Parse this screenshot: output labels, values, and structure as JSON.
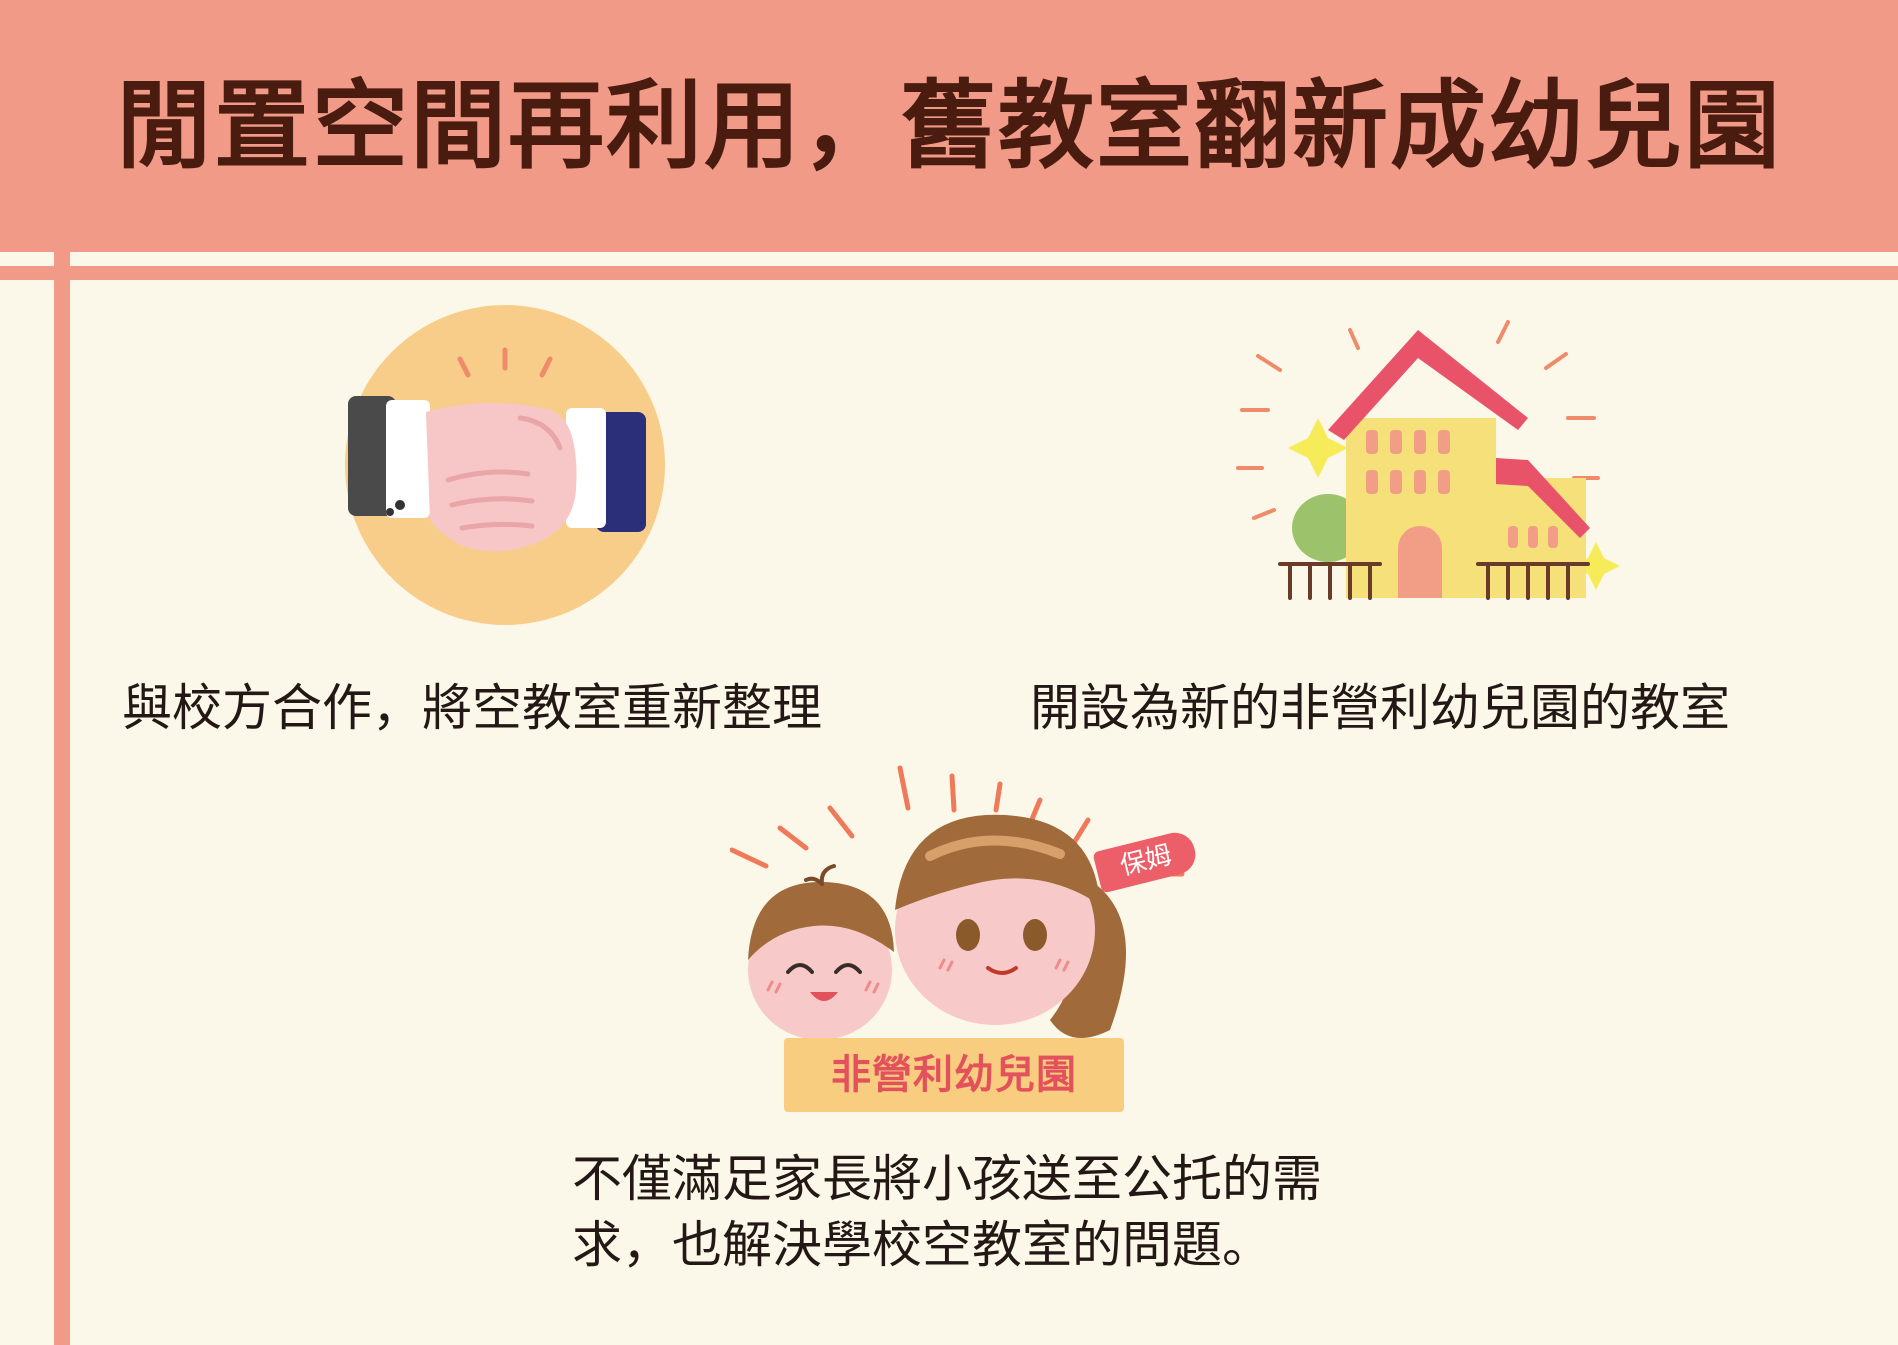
{
  "header": {
    "title": "閒置空間再利用，舊教室翻新成幼兒園"
  },
  "colors": {
    "header_bg": "#f19a88",
    "page_bg": "#fcf8e9",
    "title": "#4a1c10",
    "accent_red": "#e2515c"
  },
  "items": [
    {
      "icon": "handshake-icon",
      "caption": "與校方合作，將空教室重新整理"
    },
    {
      "icon": "school-building-icon",
      "caption": "開設為新的非營利幼兒園的教室"
    },
    {
      "icon": "nanny-and-child-icon",
      "caption": "不僅滿足家長將小孩送至公托的需求，也解決學校空教室的問題。"
    }
  ],
  "badge": {
    "label": "保姆"
  },
  "tag": {
    "label": "非營利幼兒園"
  }
}
